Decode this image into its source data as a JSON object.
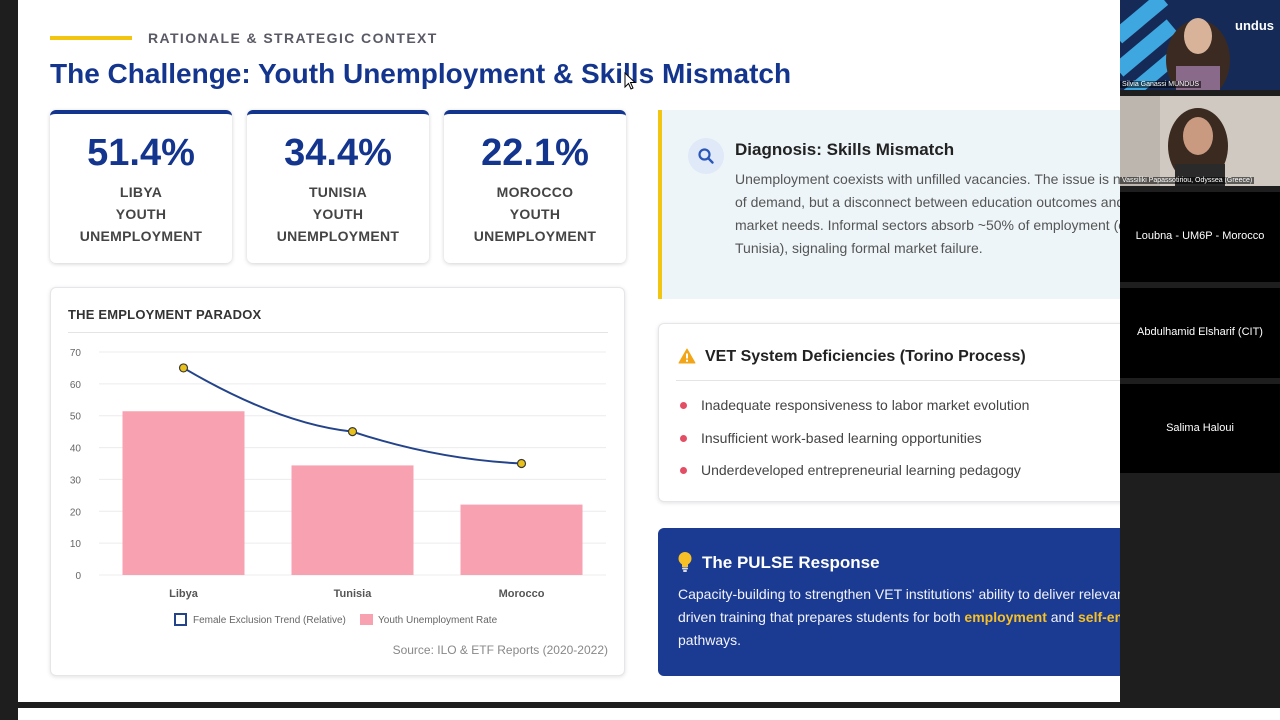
{
  "slide": {
    "kicker": "RATIONALE & STRATEGIC CONTEXT",
    "title": "The Challenge: Youth Unemployment & Skills Mismatch",
    "colors": {
      "primary": "#14358e",
      "accent": "#f2c511",
      "bar": "#f7a1b1",
      "line": "#23438a",
      "bullet": "#e34e64",
      "pulse_bg": "#1b3a91",
      "highlight": "#f6c026"
    },
    "stats": [
      {
        "value": "51.4%",
        "line1": "LIBYA",
        "line2": "YOUTH",
        "line3": "UNEMPLOYMENT"
      },
      {
        "value": "34.4%",
        "line1": "TUNISIA",
        "line2": "YOUTH",
        "line3": "UNEMPLOYMENT"
      },
      {
        "value": "22.1%",
        "line1": "MOROCCO",
        "line2": "YOUTH",
        "line3": "UNEMPLOYMENT"
      }
    ],
    "chart_card": {
      "title": "THE EMPLOYMENT PARADOX",
      "source": "Source: ILO & ETF Reports (2020-2022)"
    },
    "diagnosis": {
      "icon": "search-icon",
      "title": "Diagnosis: Skills Mismatch",
      "body": "Unemployment coexists with unfilled vacancies. The issue is not lack of demand, but a disconnect between education outcomes and labor market needs. Informal sectors absorb ~50% of employment (e.g., Tunisia), signaling formal market failure."
    },
    "vet": {
      "icon": "warning-icon",
      "title": "VET System Deficiencies (Torino Process)",
      "items": [
        "Inadequate responsiveness to labor market evolution",
        "Insufficient work-based learning opportunities",
        "Underdeveloped entrepreneurial learning pedagogy"
      ]
    },
    "pulse": {
      "icon": "lightbulb-icon",
      "title": "The PULSE Response",
      "body_1": "Capacity-building to strengthen VET institutions' ability to deliver relevant, demand-driven training that prepares students for both ",
      "hl_1": "employment",
      "body_2": " and ",
      "hl_2": "self-employment",
      "body_3": " pathways."
    }
  },
  "participants": [
    {
      "name": "Silvia Ganassi MUNDUS",
      "type": "video"
    },
    {
      "name": "Vassiliki Papassotiriou, Odyssea (Greece)",
      "type": "video"
    },
    {
      "name": "Loubna - UM6P - Morocco",
      "type": "name"
    },
    {
      "name": "Abdulhamid Elsharif (CIT)",
      "type": "name"
    },
    {
      "name": "Salima Haloui",
      "type": "name"
    }
  ],
  "logo_fragment": "undus",
  "chart_data": {
    "type": "bar",
    "title": "THE EMPLOYMENT PARADOX",
    "categories": [
      "Libya",
      "Tunisia",
      "Morocco"
    ],
    "series": [
      {
        "name": "Youth Unemployment Rate",
        "type": "bar",
        "values": [
          51.4,
          34.4,
          22.1
        ]
      },
      {
        "name": "Female Exclusion Trend (Relative)",
        "type": "line",
        "values": [
          65,
          45,
          35
        ]
      }
    ],
    "ylim": [
      0,
      70
    ],
    "yticks": [
      0,
      10,
      20,
      30,
      40,
      50,
      60,
      70
    ],
    "grid": true,
    "legend": "bottom",
    "legend_items": [
      "Female Exclusion Trend (Relative)",
      "Youth Unemployment Rate"
    ],
    "source": "Source: ILO & ETF Reports (2020-2022)"
  }
}
